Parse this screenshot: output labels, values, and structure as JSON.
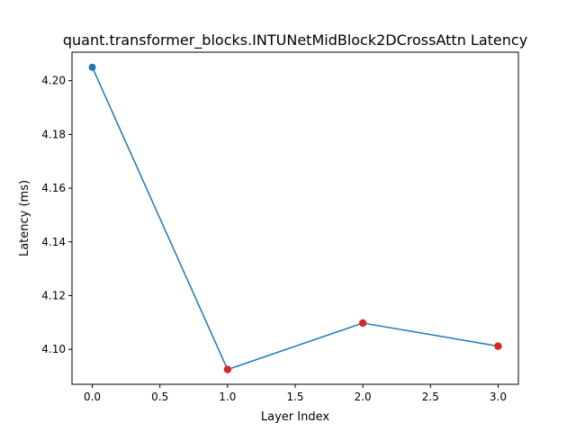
{
  "chart_data": {
    "type": "line",
    "title": "quant.transformer_blocks.INTUNetMidBlock2DCrossAttn Latency",
    "xlabel": "Layer Index",
    "ylabel": "Latency (ms)",
    "x": [
      0,
      1,
      2,
      3
    ],
    "series": [
      {
        "values": [
          4.205,
          4.0925,
          4.1098,
          4.1012
        ],
        "color": "#1f77b4"
      }
    ],
    "highlighted_points": {
      "x": [
        1,
        2,
        3
      ],
      "y": [
        4.0925,
        4.1098,
        4.1012
      ],
      "color": "#d62728"
    },
    "xlim": [
      -0.15,
      3.15
    ],
    "ylim": [
      4.087,
      4.2106
    ],
    "xticks": [
      0.0,
      0.5,
      1.0,
      1.5,
      2.0,
      2.5,
      3.0
    ],
    "xtick_labels": [
      "0.0",
      "0.5",
      "1.0",
      "1.5",
      "2.0",
      "2.5",
      "3.0"
    ],
    "yticks": [
      4.1,
      4.12,
      4.14,
      4.16,
      4.18,
      4.2
    ],
    "ytick_labels": [
      "4.10",
      "4.12",
      "4.14",
      "4.16",
      "4.18",
      "4.20"
    ],
    "grid": false,
    "legend": "none"
  }
}
